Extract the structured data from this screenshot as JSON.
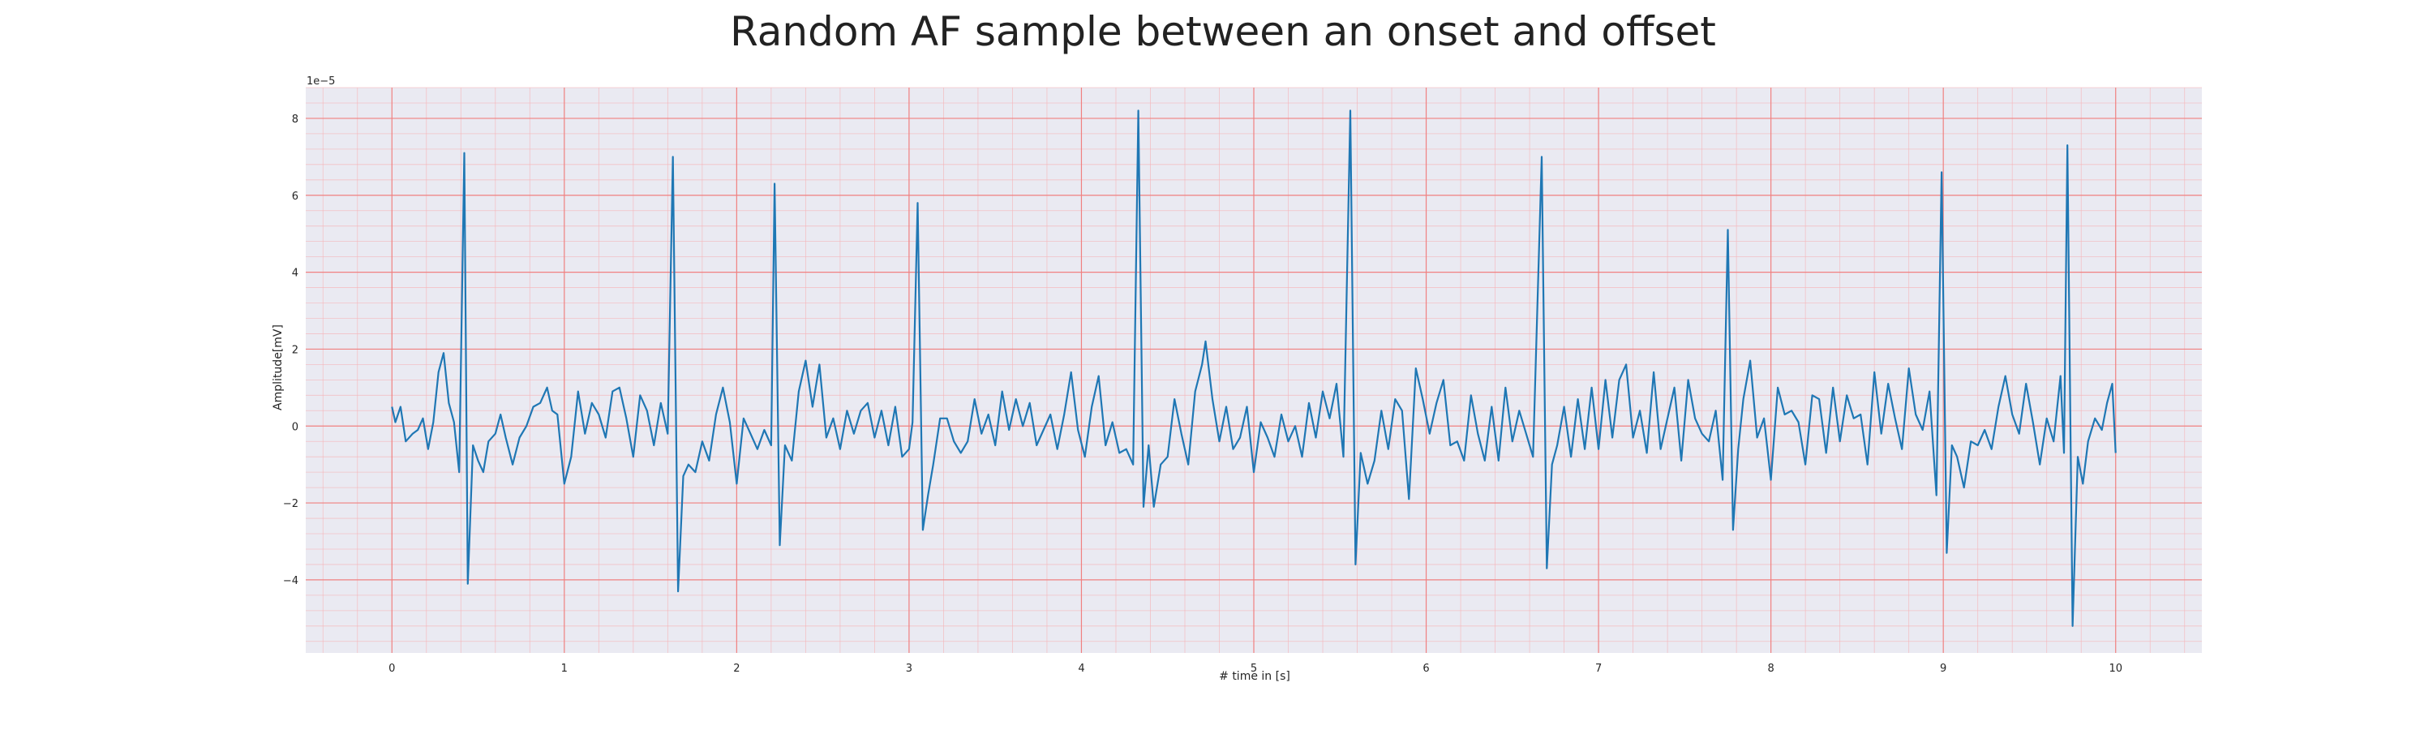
{
  "chart_data": {
    "type": "line",
    "title": "Random AF sample between an onset and offset",
    "xlabel": "# time in [s]",
    "ylabel": "Amplitude[mV]",
    "y_offset_label": "1e−5",
    "xlim": [
      -0.5,
      10.5
    ],
    "ylim": [
      -5.9,
      8.8
    ],
    "x_ticks": [
      0,
      1,
      2,
      3,
      4,
      5,
      6,
      7,
      8,
      9,
      10
    ],
    "x_tick_labels": [
      "0",
      "1",
      "2",
      "3",
      "4",
      "5",
      "6",
      "7",
      "8",
      "9",
      "10"
    ],
    "y_ticks": [
      -4,
      -2,
      0,
      2,
      4,
      6,
      8
    ],
    "y_tick_labels": [
      "−4",
      "−2",
      "0",
      "2",
      "4",
      "6",
      "8"
    ],
    "grid": true,
    "series": [
      {
        "color": "#1f77b4",
        "points": [
          [
            0.0,
            0.5
          ],
          [
            0.02,
            0.1
          ],
          [
            0.05,
            0.5
          ],
          [
            0.08,
            -0.4
          ],
          [
            0.12,
            -0.2
          ],
          [
            0.15,
            -0.1
          ],
          [
            0.18,
            0.2
          ],
          [
            0.21,
            -0.6
          ],
          [
            0.24,
            0.1
          ],
          [
            0.27,
            1.4
          ],
          [
            0.3,
            1.9
          ],
          [
            0.33,
            0.6
          ],
          [
            0.36,
            0.1
          ],
          [
            0.39,
            -1.2
          ],
          [
            0.42,
            7.1
          ],
          [
            0.44,
            -4.1
          ],
          [
            0.47,
            -0.5
          ],
          [
            0.5,
            -0.9
          ],
          [
            0.53,
            -1.2
          ],
          [
            0.56,
            -0.4
          ],
          [
            0.6,
            -0.2
          ],
          [
            0.63,
            0.3
          ],
          [
            0.66,
            -0.3
          ],
          [
            0.7,
            -1.0
          ],
          [
            0.74,
            -0.3
          ],
          [
            0.78,
            0.0
          ],
          [
            0.82,
            0.5
          ],
          [
            0.86,
            0.6
          ],
          [
            0.9,
            1.0
          ],
          [
            0.93,
            0.4
          ],
          [
            0.96,
            0.3
          ],
          [
            1.0,
            -1.5
          ],
          [
            1.04,
            -0.8
          ],
          [
            1.08,
            0.9
          ],
          [
            1.12,
            -0.2
          ],
          [
            1.16,
            0.6
          ],
          [
            1.2,
            0.3
          ],
          [
            1.24,
            -0.3
          ],
          [
            1.28,
            0.9
          ],
          [
            1.32,
            1.0
          ],
          [
            1.36,
            0.2
          ],
          [
            1.4,
            -0.8
          ],
          [
            1.44,
            0.8
          ],
          [
            1.48,
            0.4
          ],
          [
            1.52,
            -0.5
          ],
          [
            1.56,
            0.6
          ],
          [
            1.6,
            -0.2
          ],
          [
            1.63,
            7.0
          ],
          [
            1.66,
            -4.3
          ],
          [
            1.69,
            -1.3
          ],
          [
            1.72,
            -1.0
          ],
          [
            1.76,
            -1.2
          ],
          [
            1.8,
            -0.4
          ],
          [
            1.84,
            -0.9
          ],
          [
            1.88,
            0.3
          ],
          [
            1.92,
            1.0
          ],
          [
            1.96,
            0.1
          ],
          [
            2.0,
            -1.5
          ],
          [
            2.04,
            0.2
          ],
          [
            2.08,
            -0.2
          ],
          [
            2.12,
            -0.6
          ],
          [
            2.16,
            -0.1
          ],
          [
            2.2,
            -0.5
          ],
          [
            2.22,
            6.3
          ],
          [
            2.25,
            -3.1
          ],
          [
            2.28,
            -0.5
          ],
          [
            2.32,
            -0.9
          ],
          [
            2.36,
            0.9
          ],
          [
            2.4,
            1.7
          ],
          [
            2.44,
            0.5
          ],
          [
            2.48,
            1.6
          ],
          [
            2.52,
            -0.3
          ],
          [
            2.56,
            0.2
          ],
          [
            2.6,
            -0.6
          ],
          [
            2.64,
            0.4
          ],
          [
            2.68,
            -0.2
          ],
          [
            2.72,
            0.4
          ],
          [
            2.76,
            0.6
          ],
          [
            2.8,
            -0.3
          ],
          [
            2.84,
            0.4
          ],
          [
            2.88,
            -0.5
          ],
          [
            2.92,
            0.5
          ],
          [
            2.96,
            -0.8
          ],
          [
            3.0,
            -0.6
          ],
          [
            3.02,
            0.1
          ],
          [
            3.05,
            5.8
          ],
          [
            3.08,
            -2.7
          ],
          [
            3.11,
            -1.8
          ],
          [
            3.14,
            -1.0
          ],
          [
            3.18,
            0.2
          ],
          [
            3.22,
            0.2
          ],
          [
            3.26,
            -0.4
          ],
          [
            3.3,
            -0.7
          ],
          [
            3.34,
            -0.4
          ],
          [
            3.38,
            0.7
          ],
          [
            3.42,
            -0.2
          ],
          [
            3.46,
            0.3
          ],
          [
            3.5,
            -0.5
          ],
          [
            3.54,
            0.9
          ],
          [
            3.58,
            -0.1
          ],
          [
            3.62,
            0.7
          ],
          [
            3.66,
            0.0
          ],
          [
            3.7,
            0.6
          ],
          [
            3.74,
            -0.5
          ],
          [
            3.78,
            -0.1
          ],
          [
            3.82,
            0.3
          ],
          [
            3.86,
            -0.6
          ],
          [
            3.9,
            0.3
          ],
          [
            3.94,
            1.4
          ],
          [
            3.98,
            -0.1
          ],
          [
            4.02,
            -0.8
          ],
          [
            4.06,
            0.5
          ],
          [
            4.1,
            1.3
          ],
          [
            4.14,
            -0.5
          ],
          [
            4.18,
            0.1
          ],
          [
            4.22,
            -0.7
          ],
          [
            4.26,
            -0.6
          ],
          [
            4.3,
            -1.0
          ],
          [
            4.33,
            8.2
          ],
          [
            4.36,
            -2.1
          ],
          [
            4.39,
            -0.5
          ],
          [
            4.42,
            -2.1
          ],
          [
            4.46,
            -1.0
          ],
          [
            4.5,
            -0.8
          ],
          [
            4.54,
            0.7
          ],
          [
            4.58,
            -0.2
          ],
          [
            4.62,
            -1.0
          ],
          [
            4.66,
            0.9
          ],
          [
            4.7,
            1.6
          ],
          [
            4.72,
            2.2
          ],
          [
            4.76,
            0.7
          ],
          [
            4.8,
            -0.4
          ],
          [
            4.84,
            0.5
          ],
          [
            4.88,
            -0.6
          ],
          [
            4.92,
            -0.3
          ],
          [
            4.96,
            0.5
          ],
          [
            5.0,
            -1.2
          ],
          [
            5.04,
            0.1
          ],
          [
            5.08,
            -0.3
          ],
          [
            5.12,
            -0.8
          ],
          [
            5.16,
            0.3
          ],
          [
            5.2,
            -0.4
          ],
          [
            5.24,
            0.0
          ],
          [
            5.28,
            -0.8
          ],
          [
            5.32,
            0.6
          ],
          [
            5.36,
            -0.3
          ],
          [
            5.4,
            0.9
          ],
          [
            5.44,
            0.2
          ],
          [
            5.48,
            1.1
          ],
          [
            5.52,
            -0.8
          ],
          [
            5.56,
            8.2
          ],
          [
            5.59,
            -3.6
          ],
          [
            5.62,
            -0.7
          ],
          [
            5.66,
            -1.5
          ],
          [
            5.7,
            -0.9
          ],
          [
            5.74,
            0.4
          ],
          [
            5.78,
            -0.6
          ],
          [
            5.82,
            0.7
          ],
          [
            5.86,
            0.4
          ],
          [
            5.9,
            -1.9
          ],
          [
            5.94,
            1.5
          ],
          [
            5.98,
            0.7
          ],
          [
            6.02,
            -0.2
          ],
          [
            6.06,
            0.6
          ],
          [
            6.1,
            1.2
          ],
          [
            6.14,
            -0.5
          ],
          [
            6.18,
            -0.4
          ],
          [
            6.22,
            -0.9
          ],
          [
            6.26,
            0.8
          ],
          [
            6.3,
            -0.2
          ],
          [
            6.34,
            -0.9
          ],
          [
            6.38,
            0.5
          ],
          [
            6.42,
            -0.9
          ],
          [
            6.46,
            1.0
          ],
          [
            6.5,
            -0.4
          ],
          [
            6.54,
            0.4
          ],
          [
            6.58,
            -0.2
          ],
          [
            6.62,
            -0.8
          ],
          [
            6.67,
            7.0
          ],
          [
            6.7,
            -3.7
          ],
          [
            6.73,
            -1.0
          ],
          [
            6.76,
            -0.5
          ],
          [
            6.8,
            0.5
          ],
          [
            6.84,
            -0.8
          ],
          [
            6.88,
            0.7
          ],
          [
            6.92,
            -0.6
          ],
          [
            6.96,
            1.0
          ],
          [
            7.0,
            -0.6
          ],
          [
            7.04,
            1.2
          ],
          [
            7.08,
            -0.3
          ],
          [
            7.12,
            1.2
          ],
          [
            7.16,
            1.6
          ],
          [
            7.2,
            -0.3
          ],
          [
            7.24,
            0.4
          ],
          [
            7.28,
            -0.7
          ],
          [
            7.32,
            1.4
          ],
          [
            7.36,
            -0.6
          ],
          [
            7.4,
            0.2
          ],
          [
            7.44,
            1.0
          ],
          [
            7.48,
            -0.9
          ],
          [
            7.52,
            1.2
          ],
          [
            7.56,
            0.2
          ],
          [
            7.6,
            -0.2
          ],
          [
            7.64,
            -0.4
          ],
          [
            7.68,
            0.4
          ],
          [
            7.72,
            -1.4
          ],
          [
            7.75,
            5.1
          ],
          [
            7.78,
            -2.7
          ],
          [
            7.81,
            -0.6
          ],
          [
            7.84,
            0.7
          ],
          [
            7.88,
            1.7
          ],
          [
            7.92,
            -0.3
          ],
          [
            7.96,
            0.2
          ],
          [
            8.0,
            -1.4
          ],
          [
            8.04,
            1.0
          ],
          [
            8.08,
            0.3
          ],
          [
            8.12,
            0.4
          ],
          [
            8.16,
            0.1
          ],
          [
            8.2,
            -1.0
          ],
          [
            8.24,
            0.8
          ],
          [
            8.28,
            0.7
          ],
          [
            8.32,
            -0.7
          ],
          [
            8.36,
            1.0
          ],
          [
            8.4,
            -0.4
          ],
          [
            8.44,
            0.8
          ],
          [
            8.48,
            0.2
          ],
          [
            8.52,
            0.3
          ],
          [
            8.56,
            -1.0
          ],
          [
            8.6,
            1.4
          ],
          [
            8.64,
            -0.2
          ],
          [
            8.68,
            1.1
          ],
          [
            8.72,
            0.2
          ],
          [
            8.76,
            -0.6
          ],
          [
            8.8,
            1.5
          ],
          [
            8.84,
            0.3
          ],
          [
            8.88,
            -0.1
          ],
          [
            8.92,
            0.9
          ],
          [
            8.96,
            -1.8
          ],
          [
            8.99,
            6.6
          ],
          [
            9.02,
            -3.3
          ],
          [
            9.05,
            -0.5
          ],
          [
            9.08,
            -0.8
          ],
          [
            9.12,
            -1.6
          ],
          [
            9.16,
            -0.4
          ],
          [
            9.2,
            -0.5
          ],
          [
            9.24,
            -0.1
          ],
          [
            9.28,
            -0.6
          ],
          [
            9.32,
            0.5
          ],
          [
            9.36,
            1.3
          ],
          [
            9.4,
            0.3
          ],
          [
            9.44,
            -0.2
          ],
          [
            9.48,
            1.1
          ],
          [
            9.52,
            0.1
          ],
          [
            9.56,
            -1.0
          ],
          [
            9.6,
            0.2
          ],
          [
            9.64,
            -0.4
          ],
          [
            9.68,
            1.3
          ],
          [
            9.7,
            -0.7
          ],
          [
            9.72,
            7.3
          ],
          [
            9.75,
            -5.2
          ],
          [
            9.78,
            -0.8
          ],
          [
            9.81,
            -1.5
          ],
          [
            9.84,
            -0.4
          ],
          [
            9.88,
            0.2
          ],
          [
            9.92,
            -0.1
          ],
          [
            9.95,
            0.6
          ],
          [
            9.98,
            1.1
          ],
          [
            10.0,
            -0.7
          ]
        ]
      }
    ]
  }
}
